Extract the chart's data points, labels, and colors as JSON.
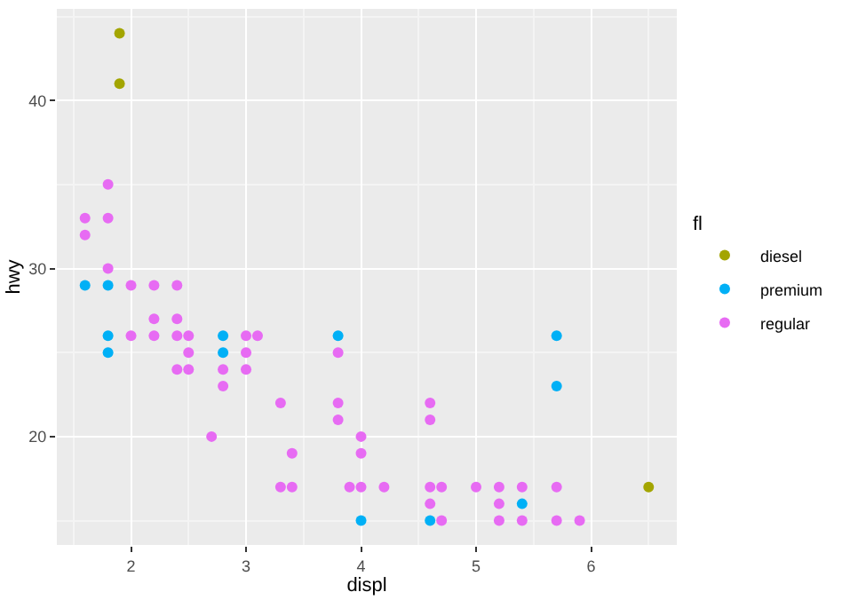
{
  "chart_data": {
    "type": "scatter",
    "xlabel": "displ",
    "ylabel": "hwy",
    "legend_title": "fl",
    "xlim": [
      1.355,
      6.745
    ],
    "xticks": [
      2,
      3,
      4,
      5,
      6
    ],
    "ylim": [
      13.55,
      45.45
    ],
    "yticks": [
      20,
      30,
      40
    ],
    "grid": true,
    "legend": "right",
    "marker": "circle",
    "series": [
      {
        "name": "diesel",
        "color": "#a3a500",
        "x": [
          1.9,
          1.9,
          6.5
        ],
        "values": [
          44,
          41,
          17
        ]
      },
      {
        "name": "premium",
        "color": "#00b0f6",
        "x": [
          1.6,
          1.8,
          1.8,
          1.8,
          2.8,
          2.8,
          3.8,
          4.0,
          4.6,
          5.4,
          5.7,
          5.7
        ],
        "values": [
          29,
          29,
          26,
          25,
          26,
          25,
          26,
          15,
          15,
          16,
          26,
          23
        ]
      },
      {
        "name": "regular",
        "color": "#e76bf3",
        "x": [
          1.8,
          1.6,
          1.8,
          1.6,
          1.8,
          2.0,
          2.2,
          2.4,
          2.2,
          2.4,
          2.0,
          2.2,
          2.4,
          2.5,
          3.0,
          3.1,
          2.5,
          3.0,
          3.8,
          2.4,
          2.5,
          2.8,
          3.0,
          2.8,
          3.3,
          3.8,
          3.8,
          2.7,
          4.0,
          3.4,
          4.0,
          3.3,
          3.4,
          3.9,
          4.0,
          4.2,
          4.6,
          4.7,
          5.0,
          5.2,
          5.4,
          5.7,
          4.6,
          4.6,
          4.6,
          5.2,
          4.7,
          5.2,
          5.4,
          5.7,
          5.9
        ],
        "values": [
          35,
          33,
          33,
          32,
          30,
          29,
          29,
          29,
          27,
          27,
          26,
          26,
          26,
          26,
          26,
          26,
          25,
          25,
          25,
          24,
          24,
          24,
          24,
          23,
          22,
          22,
          21,
          20,
          20,
          19,
          19,
          17,
          17,
          17,
          17,
          17,
          17,
          17,
          17,
          17,
          17,
          17,
          22,
          21,
          16,
          16,
          15,
          15,
          15,
          15,
          15
        ]
      }
    ]
  }
}
